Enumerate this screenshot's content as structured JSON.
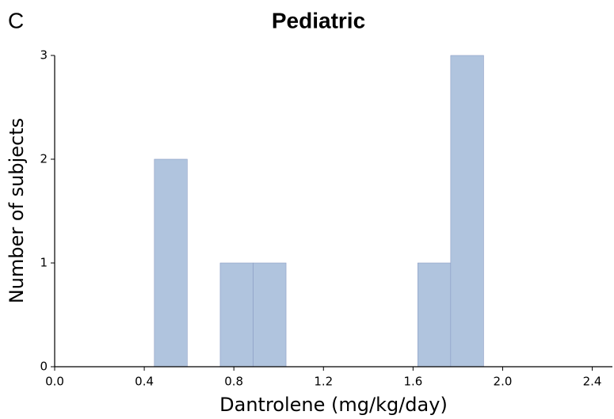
{
  "chart_data": {
    "type": "histogram",
    "panel_label": "C",
    "title": "Pediatric",
    "x_label": "Dantrolene (mg/kg/day)",
    "y_label": "Number of subjects",
    "bins": [
      0.445,
      0.592,
      0.739,
      0.886,
      1.033,
      1.18,
      1.327,
      1.474,
      1.621,
      1.768,
      1.915
    ],
    "counts": [
      2,
      0,
      1,
      1,
      0,
      0,
      0,
      0,
      1,
      3
    ],
    "color": "#b0c4de",
    "xlim": [
      0,
      2.49
    ],
    "xticks": [
      {
        "value": 0,
        "label": "0.0"
      },
      0.4,
      0.8,
      1.2,
      1.6,
      {
        "value": 2,
        "label": "2.0"
      },
      2.4
    ],
    "ylim": [
      0,
      3
    ],
    "yticks": [
      0,
      1,
      2,
      3
    ],
    "grid": false
  }
}
